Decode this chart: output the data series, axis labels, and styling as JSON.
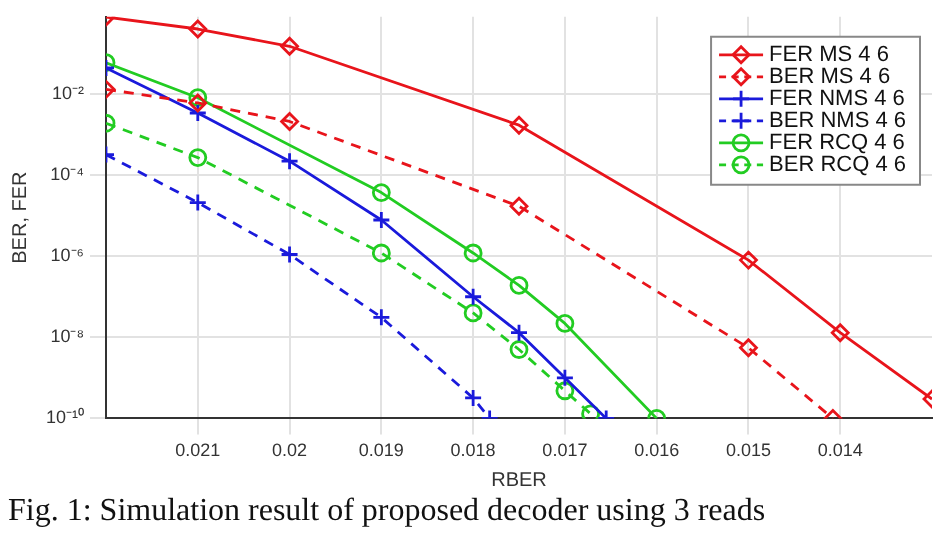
{
  "chart_data": {
    "type": "line",
    "xlabel": "RBER",
    "ylabel": "BER, FER",
    "log": "y",
    "grid": true,
    "legend": "top right",
    "xlim": [
      0.022,
      0.013
    ],
    "xticks": [
      0.021,
      0.02,
      0.019,
      0.018,
      0.017,
      0.016,
      0.015,
      0.014
    ],
    "ylim": [
      1e-10,
      0.8
    ],
    "yticks": [
      {
        "value": 0.01,
        "label": "10⁻²"
      },
      {
        "value": 0.0001,
        "label": "10⁻⁴"
      },
      {
        "value": 1e-06,
        "label": "10⁻⁶"
      },
      {
        "value": 1e-08,
        "label": "10⁻⁸"
      },
      {
        "value": 1e-10,
        "label": "10⁻¹⁰"
      }
    ],
    "series": [
      {
        "name": "FER MS 4 6",
        "color": "#e8141b",
        "marker": "diamond",
        "line_style": "solid",
        "x": [
          0.022,
          0.021,
          0.02,
          0.0175,
          0.015,
          0.014,
          0.013
        ],
        "values": [
          0.79,
          0.4,
          0.15,
          0.0017,
          8e-07,
          1.3e-08,
          3e-10
        ]
      },
      {
        "name": "BER MS 4 6",
        "color": "#e8141b",
        "marker": "diamond",
        "line_style": "dashed",
        "x": [
          0.022,
          0.021,
          0.02,
          0.0175,
          0.015,
          0.01408
        ],
        "values": [
          0.013,
          0.006,
          0.0021,
          1.7e-05,
          5.5e-09,
          1e-10
        ]
      },
      {
        "name": "FER NMS 4 6",
        "color": "#1a1adb",
        "marker": "cross",
        "line_style": "solid",
        "x": [
          0.022,
          0.021,
          0.02,
          0.019,
          0.018,
          0.0175,
          0.017,
          0.01655
        ],
        "values": [
          0.044,
          0.0034,
          0.00022,
          7.8e-06,
          1e-07,
          1.3e-08,
          1e-09,
          1e-10
        ]
      },
      {
        "name": "BER NMS 4 6",
        "color": "#1a1adb",
        "marker": "cross",
        "line_style": "dashed",
        "x": [
          0.022,
          0.021,
          0.02,
          0.019,
          0.018,
          0.01782
        ],
        "values": [
          0.00032,
          2.1e-05,
          1.1e-06,
          3.1e-08,
          3.2e-10,
          1e-10
        ]
      },
      {
        "name": "FER RCQ 4 6",
        "color": "#22cc22",
        "marker": "circle",
        "line_style": "solid",
        "x": [
          0.022,
          0.021,
          0.019,
          0.018,
          0.0175,
          0.017,
          0.016
        ],
        "values": [
          0.059,
          0.0081,
          3.7e-05,
          1.2e-06,
          1.9e-07,
          2.2e-08,
          1e-10
        ]
      },
      {
        "name": "BER RCQ 4 6",
        "color": "#22cc22",
        "marker": "circle",
        "line_style": "dashed",
        "x": [
          0.022,
          0.021,
          0.019,
          0.018,
          0.0175,
          0.017,
          0.01672
        ],
        "values": [
          0.0019,
          0.00027,
          1.2e-06,
          4e-08,
          5e-09,
          4.8e-10,
          1.3e-10
        ]
      }
    ],
    "annotations": [
      "Fig. 1: Simulation result of proposed decoder using 3 reads"
    ]
  }
}
